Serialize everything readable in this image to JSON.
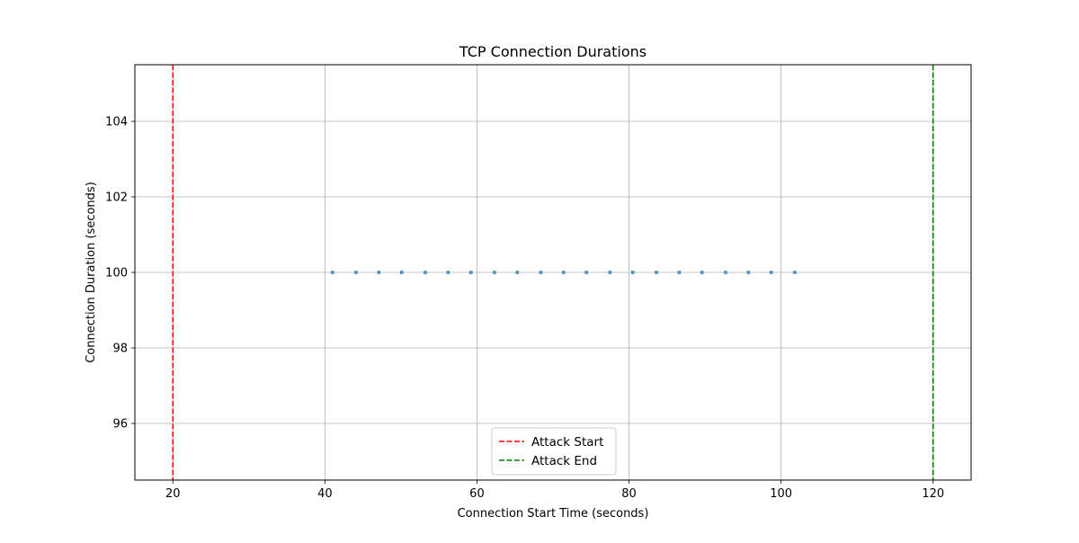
{
  "chart_data": {
    "type": "scatter",
    "title": "TCP Connection Durations",
    "xlabel": "Connection Start Time (seconds)",
    "ylabel": "Connection Duration (seconds)",
    "xlim": [
      15,
      125
    ],
    "ylim": [
      94.5,
      105.5
    ],
    "x_ticks": [
      20,
      40,
      60,
      80,
      100,
      120
    ],
    "y_ticks": [
      96,
      98,
      100,
      102,
      104
    ],
    "grid": true,
    "series": [
      {
        "color": "#1f77b4",
        "points": [
          {
            "x": 41.0,
            "y": 100
          },
          {
            "x": 44.1,
            "y": 100
          },
          {
            "x": 47.1,
            "y": 100
          },
          {
            "x": 50.1,
            "y": 100
          },
          {
            "x": 53.2,
            "y": 100
          },
          {
            "x": 56.2,
            "y": 100
          },
          {
            "x": 59.2,
            "y": 100
          },
          {
            "x": 62.3,
            "y": 100
          },
          {
            "x": 65.3,
            "y": 100
          },
          {
            "x": 68.4,
            "y": 100
          },
          {
            "x": 71.4,
            "y": 100
          },
          {
            "x": 74.4,
            "y": 100
          },
          {
            "x": 77.5,
            "y": 100
          },
          {
            "x": 80.5,
            "y": 100
          },
          {
            "x": 83.6,
            "y": 100
          },
          {
            "x": 86.6,
            "y": 100
          },
          {
            "x": 89.6,
            "y": 100
          },
          {
            "x": 92.7,
            "y": 100
          },
          {
            "x": 95.7,
            "y": 100
          },
          {
            "x": 98.7,
            "y": 100
          },
          {
            "x": 101.8,
            "y": 100
          }
        ]
      }
    ],
    "vlines": [
      {
        "x": 20,
        "label": "Attack Start",
        "color": "#ff0000"
      },
      {
        "x": 120,
        "label": "Attack End",
        "color": "#008000"
      }
    ],
    "legend": {
      "placement": "lower-center",
      "entries": [
        {
          "label": "Attack Start",
          "color": "#ff0000"
        },
        {
          "label": "Attack End",
          "color": "#008000"
        }
      ]
    }
  }
}
